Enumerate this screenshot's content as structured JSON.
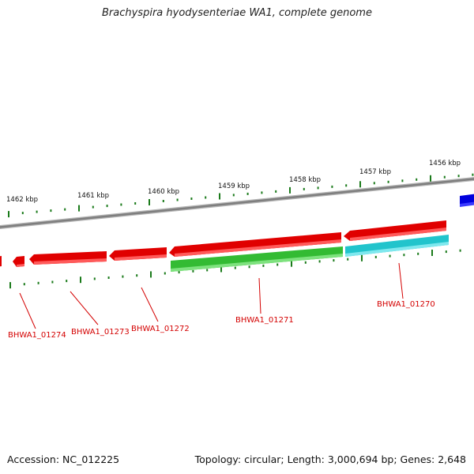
{
  "header": {
    "title": "Brachyspira hyodysenteriae WA1, complete genome"
  },
  "footer": {
    "accession": "Accession: NC_012225",
    "summary": "Topology: circular; Length: 3,000,694 bp; Genes: 2,648"
  },
  "map": {
    "scale_labels": [
      "1462 kbp",
      "1461 kbp",
      "1460 kbp",
      "1459 kbp",
      "1458 kbp",
      "1457 kbp",
      "1456 kbp"
    ],
    "gene_labels": [
      "BHWA1_01274",
      "BHWA1_01273",
      "BHWA1_01272",
      "BHWA1_01271",
      "BHWA1_01270"
    ],
    "colors": {
      "backbone": "#8c8c8c",
      "ticks": "#1a7a1a",
      "reverse_strand_gene": "#e00000",
      "green_gene": "#33bb33",
      "cyan_gene": "#22c4cc",
      "blue_gene": "#0000dd",
      "label_text": "#d40000"
    }
  }
}
